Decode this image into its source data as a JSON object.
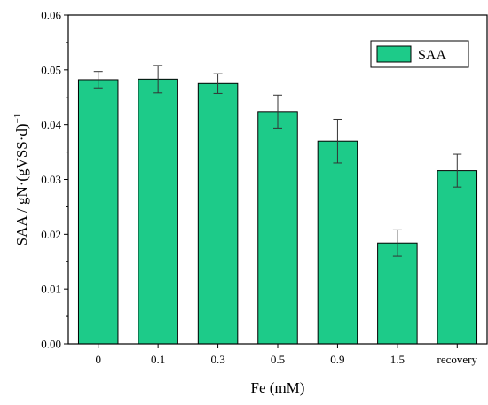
{
  "chart_data": {
    "type": "bar",
    "categories": [
      "0",
      "0.1",
      "0.3",
      "0.5",
      "0.9",
      "1.5",
      "recovery"
    ],
    "series": [
      {
        "name": "SAA",
        "values": [
          0.0482,
          0.0483,
          0.0475,
          0.0424,
          0.037,
          0.0184,
          0.0316
        ],
        "errors": [
          0.0015,
          0.0025,
          0.0018,
          0.003,
          0.004,
          0.0024,
          0.003
        ],
        "color": "#1DCB89"
      }
    ],
    "xlabel": "Fe (mM)",
    "ylabel_main": "SAA / gN·(gVSS·d)",
    "ylabel_sup": "−1",
    "ylim": [
      0,
      0.06
    ],
    "yticks": [
      "0.00",
      "0.01",
      "0.02",
      "0.03",
      "0.04",
      "0.05",
      "0.06"
    ],
    "grid": false,
    "legend_position": "top-right"
  }
}
